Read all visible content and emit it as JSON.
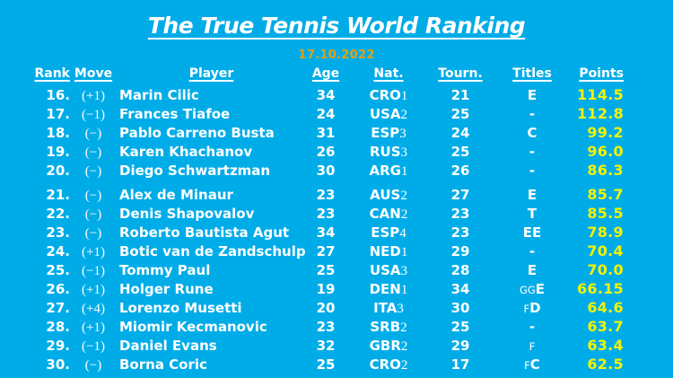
{
  "chart_data": {
    "type": "table",
    "title": "The True Tennis World Ranking",
    "date": "17.10.2022",
    "colors": {
      "background": "#00ACE8",
      "text": "#FFFFFF",
      "points_text": "#F2F400",
      "date_text": "#D9A21D"
    },
    "columns": {
      "rank": "Rank",
      "move": "Move",
      "player": "Player",
      "age": "Age",
      "nat": "Nat.",
      "tourn": "Tourn.",
      "titles": "Titles",
      "points": "Points"
    },
    "groups": [
      {
        "rows": [
          {
            "rank": "16.",
            "move": "(+1)",
            "player": "Marin Cilic",
            "age": "34",
            "nat": "CRO",
            "natn": "1",
            "tourn": "21",
            "t_small": "",
            "t_big": "E",
            "points": "114.5"
          },
          {
            "rank": "17.",
            "move": "(−1)",
            "player": "Frances Tiafoe",
            "age": "24",
            "nat": "USA",
            "natn": "2",
            "tourn": "25",
            "t_small": "",
            "t_big": "-",
            "points": "112.8"
          },
          {
            "rank": "18.",
            "move": "(−)",
            "player": "Pablo Carreno Busta",
            "age": "31",
            "nat": "ESP",
            "natn": "3",
            "tourn": "24",
            "t_small": "",
            "t_big": "C",
            "points": "99.2"
          },
          {
            "rank": "19.",
            "move": "(−)",
            "player": "Karen Khachanov",
            "age": "26",
            "nat": "RUS",
            "natn": "3",
            "tourn": "25",
            "t_small": "",
            "t_big": "-",
            "points": "96.0"
          },
          {
            "rank": "20.",
            "move": "(−)",
            "player": "Diego Schwartzman",
            "age": "30",
            "nat": "ARG",
            "natn": "1",
            "tourn": "26",
            "t_small": "",
            "t_big": "-",
            "points": "86.3"
          }
        ]
      },
      {
        "rows": [
          {
            "rank": "21.",
            "move": "(−)",
            "player": "Alex de Minaur",
            "age": "23",
            "nat": "AUS",
            "natn": "2",
            "tourn": "27",
            "t_small": "",
            "t_big": "E",
            "points": "85.7"
          },
          {
            "rank": "22.",
            "move": "(−)",
            "player": "Denis Shapovalov",
            "age": "23",
            "nat": "CAN",
            "natn": "2",
            "tourn": "23",
            "t_small": "",
            "t_big": "T",
            "points": "85.5"
          },
          {
            "rank": "23.",
            "move": "(−)",
            "player": "Roberto Bautista Agut",
            "age": "34",
            "nat": "ESP",
            "natn": "4",
            "tourn": "23",
            "t_small": "",
            "t_big": "EE",
            "points": "78.9"
          },
          {
            "rank": "24.",
            "move": "(+1)",
            "player": "Botic van de Zandschulp",
            "age": "27",
            "nat": "NED",
            "natn": "1",
            "tourn": "29",
            "t_small": "",
            "t_big": "-",
            "points": "70.4"
          },
          {
            "rank": "25.",
            "move": "(−1)",
            "player": "Tommy Paul",
            "age": "25",
            "nat": "USA",
            "natn": "3",
            "tourn": "28",
            "t_small": "",
            "t_big": "E",
            "points": "70.0"
          },
          {
            "rank": "26.",
            "move": "(+1)",
            "player": "Holger Rune",
            "age": "19",
            "nat": "DEN",
            "natn": "1",
            "tourn": "34",
            "t_small": "GG",
            "t_big": "E",
            "points": "66.15"
          },
          {
            "rank": "27.",
            "move": "(+4)",
            "player": "Lorenzo Musetti",
            "age": "20",
            "nat": "ITA",
            "natn": "3",
            "tourn": "30",
            "t_small": "F",
            "t_big": "D",
            "points": "64.6"
          },
          {
            "rank": "28.",
            "move": "(+1)",
            "player": "Miomir Kecmanovic",
            "age": "23",
            "nat": "SRB",
            "natn": "2",
            "tourn": "25",
            "t_small": "",
            "t_big": "-",
            "points": "63.7"
          },
          {
            "rank": "29.",
            "move": "(−1)",
            "player": "Daniel Evans",
            "age": "32",
            "nat": "GBR",
            "natn": "2",
            "tourn": "29",
            "t_small": "F",
            "t_big": "",
            "points": "63.4"
          },
          {
            "rank": "30.",
            "move": "(−)",
            "player": "Borna Coric",
            "age": "25",
            "nat": "CRO",
            "natn": "2",
            "tourn": "17",
            "t_small": "F",
            "t_big": "C",
            "points": "62.5"
          }
        ]
      }
    ]
  }
}
